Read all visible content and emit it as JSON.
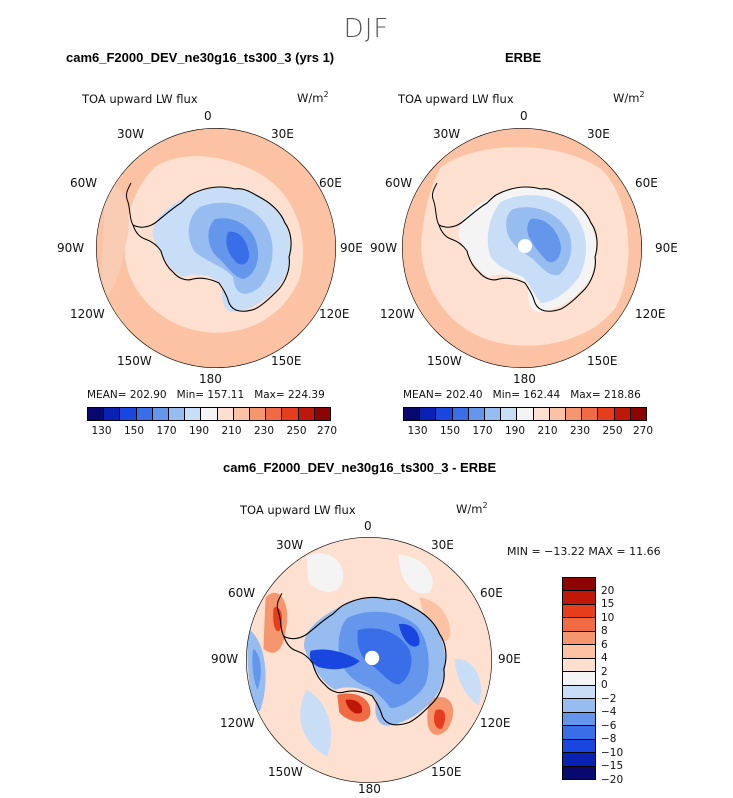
{
  "season": "DJF",
  "panels": [
    {
      "title": "cam6_F2000_DEV_ne30g16_ts300_3 (yrs 1)",
      "variable": "TOA upward LW flux",
      "units_base": "W/m",
      "units_exp": "2",
      "stats": {
        "mean_label": "MEAN=",
        "mean": "202.90",
        "min_label": "Min=",
        "min": "157.11",
        "max_label": "Max=",
        "max": "224.39"
      },
      "colorbar_labels": [
        "130",
        "150",
        "170",
        "190",
        "210",
        "230",
        "250",
        "270"
      ]
    },
    {
      "title": "ERBE",
      "variable": "TOA upward LW flux",
      "units_base": "W/m",
      "units_exp": "2",
      "stats": {
        "mean_label": "MEAN=",
        "mean": "202.40",
        "min_label": "Min=",
        "min": "162.44",
        "max_label": "Max=",
        "max": "218.86"
      },
      "colorbar_labels": [
        "130",
        "150",
        "170",
        "190",
        "210",
        "230",
        "250",
        "270"
      ]
    }
  ],
  "diff_panel": {
    "title": "cam6_F2000_DEV_ne30g16_ts300_3 - ERBE",
    "variable": "TOA upward LW flux",
    "units_base": "W/m",
    "units_exp": "2",
    "minmax": "MIN = −13.22  MAX =   11.66",
    "colorbar_labels": [
      "20",
      "15",
      "10",
      "8",
      "6",
      "4",
      "2",
      "0",
      "−2",
      "−4",
      "−6",
      "−8",
      "−10",
      "−15",
      "−20"
    ]
  },
  "lon_labels": {
    "l0": "0",
    "l30e": "30E",
    "l60e": "60E",
    "l90e": "90E",
    "l120e": "120E",
    "l150e": "150E",
    "l180": "180",
    "l150w": "150W",
    "l120w": "120W",
    "l90w": "90W",
    "l60w": "60W",
    "l30w": "30W"
  },
  "colors": {
    "flux_scale": [
      "#08086e",
      "#0a22b4",
      "#1a46e0",
      "#3a6ee8",
      "#6496ec",
      "#96bcf0",
      "#c8ddf6",
      "#f4f4f4",
      "#fde0cf",
      "#fbc2a4",
      "#f6966e",
      "#f06a44",
      "#e63e1c",
      "#c01808",
      "#8c0404"
    ],
    "diff_scale": [
      "#8c0404",
      "#c01808",
      "#e63e1c",
      "#f06a44",
      "#f6966e",
      "#fbc2a4",
      "#fde0cf",
      "#f4f4f4",
      "#c8ddf6",
      "#96bcf0",
      "#6496ec",
      "#3a6ee8",
      "#1a46e0",
      "#0a22b4",
      "#08086e"
    ]
  }
}
